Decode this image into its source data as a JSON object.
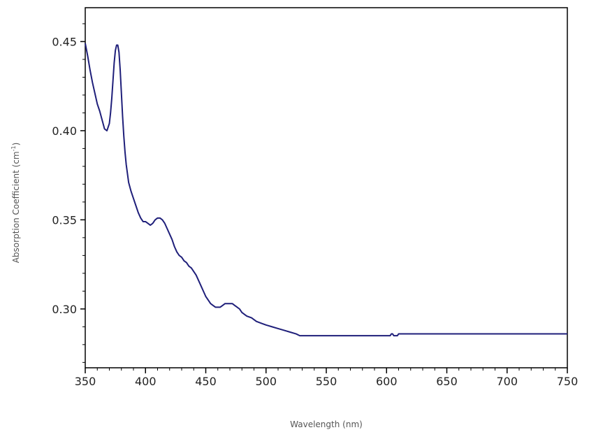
{
  "chart_data": {
    "type": "line",
    "title": "",
    "xlabel": "Wavelength (nm)",
    "ylabel_main": "Absorption Coefficient (cm",
    "ylabel_sup": "-1",
    "ylabel_close": ")",
    "xlim": [
      350,
      750
    ],
    "ylim": [
      0.267,
      0.469
    ],
    "x_ticks": [
      350,
      400,
      450,
      500,
      550,
      600,
      650,
      700,
      750
    ],
    "y_ticks": [
      0.3,
      0.35,
      0.4,
      0.45
    ],
    "y_tick_labels": [
      "0.30",
      "0.35",
      "0.40",
      "0.45"
    ],
    "grid": false,
    "line_color": "#1f1f7a",
    "series": [
      {
        "x": [
          350,
          352,
          354,
          356,
          358,
          360,
          362,
          364,
          366,
          368,
          370,
          371,
          372,
          373,
          374,
          375,
          376,
          377,
          378,
          379,
          380,
          381,
          382,
          383,
          384,
          385,
          386,
          388,
          390,
          392,
          394,
          396,
          398,
          400,
          402,
          404,
          406,
          408,
          410,
          412,
          414,
          416,
          418,
          420,
          422,
          424,
          426,
          428,
          430,
          432,
          434,
          436,
          438,
          440,
          442,
          444,
          446,
          448,
          450,
          452,
          454,
          456,
          458,
          460,
          462,
          464,
          466,
          468,
          470,
          472,
          474,
          476,
          478,
          480,
          484,
          488,
          492,
          496,
          500,
          505,
          510,
          515,
          520,
          525,
          528,
          530,
          540,
          560,
          580,
          600,
          603,
          604,
          605,
          606,
          607,
          608,
          609,
          610,
          611,
          620,
          650,
          700,
          750
        ],
        "y": [
          0.449,
          0.442,
          0.434,
          0.427,
          0.421,
          0.415,
          0.411,
          0.406,
          0.401,
          0.4,
          0.404,
          0.41,
          0.418,
          0.428,
          0.438,
          0.445,
          0.448,
          0.448,
          0.444,
          0.434,
          0.421,
          0.408,
          0.397,
          0.388,
          0.381,
          0.376,
          0.371,
          0.366,
          0.362,
          0.358,
          0.354,
          0.351,
          0.349,
          0.349,
          0.348,
          0.347,
          0.348,
          0.35,
          0.351,
          0.351,
          0.35,
          0.348,
          0.345,
          0.342,
          0.339,
          0.335,
          0.332,
          0.33,
          0.329,
          0.327,
          0.326,
          0.324,
          0.323,
          0.321,
          0.319,
          0.316,
          0.313,
          0.31,
          0.307,
          0.305,
          0.303,
          0.302,
          0.301,
          0.301,
          0.301,
          0.302,
          0.303,
          0.303,
          0.303,
          0.303,
          0.302,
          0.301,
          0.3,
          0.298,
          0.296,
          0.295,
          0.293,
          0.292,
          0.291,
          0.29,
          0.289,
          0.288,
          0.287,
          0.286,
          0.285,
          0.285,
          0.285,
          0.285,
          0.285,
          0.285,
          0.285,
          0.286,
          0.286,
          0.285,
          0.285,
          0.285,
          0.285,
          0.286,
          0.286,
          0.286,
          0.286,
          0.286,
          0.286
        ]
      }
    ]
  }
}
